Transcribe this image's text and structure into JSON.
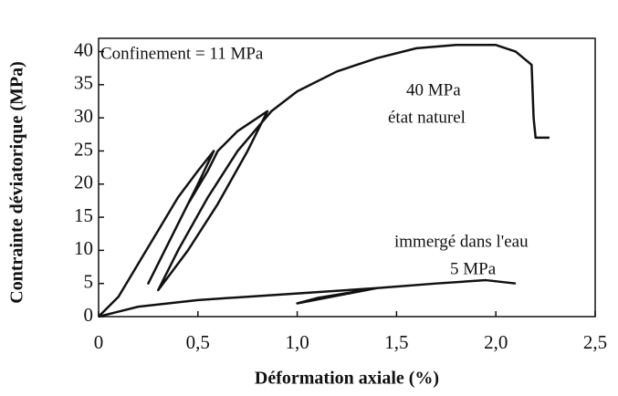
{
  "chart_data": {
    "type": "line",
    "x_label": "Déformation axiale (%)",
    "y_label": "Contrainte déviatorique (MPa)",
    "annotations": [
      "Confinement = 11 MPa",
      "40 MPa",
      "état naturel",
      "immergé dans l'eau",
      "5 MPa"
    ],
    "xlim": [
      0,
      2.5
    ],
    "ylim": [
      0,
      42
    ],
    "xticks": [
      0,
      {
        "value": 0.5,
        "label": "0,5"
      },
      {
        "value": 1.0,
        "label": "1,0"
      },
      {
        "value": 1.5,
        "label": "1,5"
      },
      {
        "value": 2.0,
        "label": "2,0"
      },
      {
        "value": 2.5,
        "label": "2,5"
      }
    ],
    "yticks": [
      0,
      5,
      10,
      15,
      20,
      25,
      30,
      35,
      40
    ],
    "series": [
      {
        "color": "#111111",
        "x": [
          0,
          0.1,
          0.2,
          0.3,
          0.4,
          0.5,
          0.58,
          0.5,
          0.4,
          0.3,
          0.25,
          0.35,
          0.45,
          0.55,
          0.6,
          0.7,
          0.85,
          0.75,
          0.6,
          0.45,
          0.3,
          0.4,
          0.55,
          0.7,
          0.87,
          1.0,
          1.2,
          1.4,
          1.6,
          1.8,
          2.0,
          2.1,
          2.18,
          2.19,
          2.2,
          2.27
        ],
        "values": [
          0,
          3,
          8,
          13,
          18,
          22,
          25,
          20,
          14,
          8,
          5,
          11,
          17,
          22,
          25,
          28,
          31,
          25,
          17,
          10,
          4,
          10,
          18,
          25,
          31,
          34,
          37,
          39,
          40.5,
          41,
          41,
          40,
          38,
          30,
          27,
          27
        ]
      },
      {
        "color": "#111111",
        "x": [
          0,
          0.2,
          0.5,
          1.0,
          1.4,
          1.0,
          1.1,
          1.4,
          1.7,
          1.95,
          2.1
        ],
        "values": [
          0,
          1.5,
          2.5,
          3.5,
          4.3,
          2.0,
          2.8,
          4.3,
          5,
          5.5,
          5
        ]
      }
    ]
  }
}
